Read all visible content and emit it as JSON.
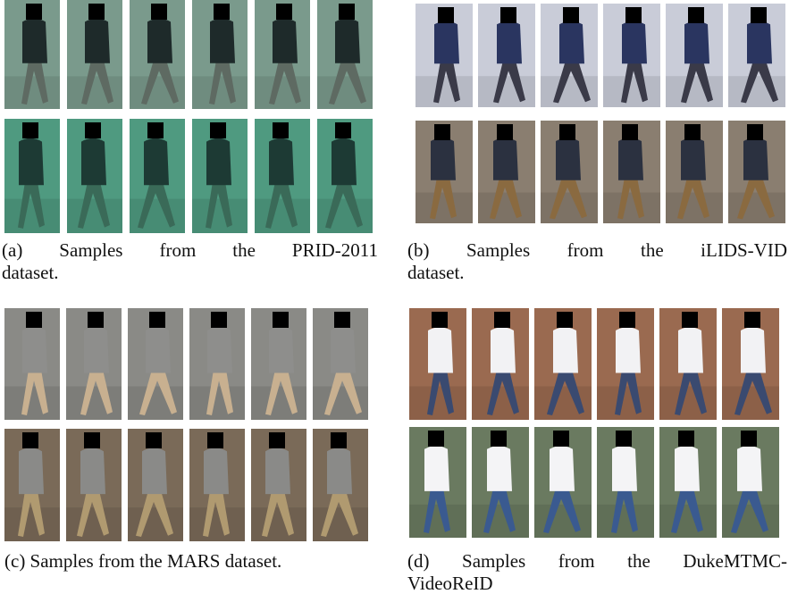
{
  "panels": [
    {
      "caption": [
        "(a) Samples from the PRID-2011",
        "dataset."
      ]
    },
    {
      "caption": [
        "(b) Samples from the iLIDS-VID",
        "dataset."
      ]
    },
    {
      "caption": [
        "(c) Samples from the MARS dataset."
      ]
    },
    {
      "caption": [
        "(d) Samples from the DukeMTMC-",
        "VideoReID"
      ]
    }
  ]
}
